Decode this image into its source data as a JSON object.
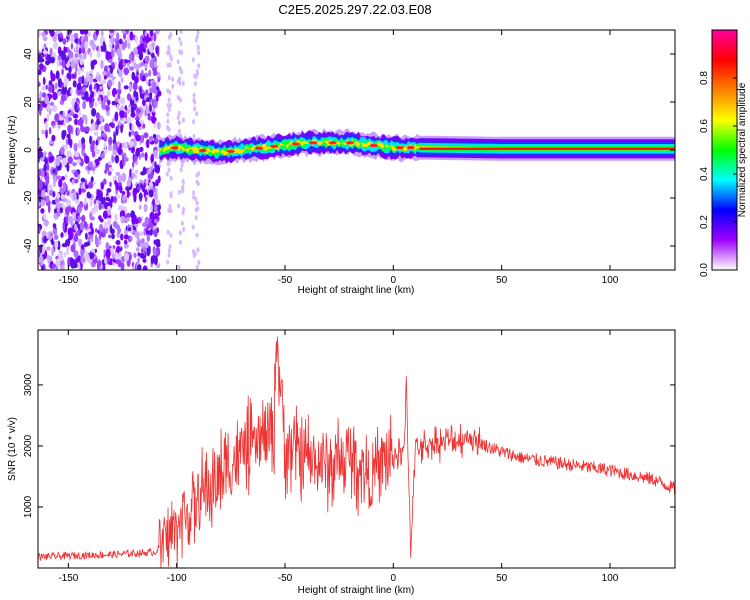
{
  "title": "C2E5.2025.297.22.03.E08",
  "chart_data": [
    {
      "type": "heatmap",
      "xlabel": "Height of straight line (km)",
      "ylabel": "Frequency (Hz)",
      "xlim": [
        -164,
        130
      ],
      "ylim": [
        -50,
        50
      ],
      "xticks": [
        -150,
        -100,
        -50,
        0,
        50,
        100
      ],
      "yticks": [
        -40,
        -20,
        0,
        20,
        40
      ],
      "colorbar": {
        "label": "Normalized spectral amplitude",
        "range": [
          0,
          1
        ],
        "ticks": [
          0.0,
          0.2,
          0.4,
          0.6,
          0.8
        ],
        "tick_labels": [
          "0.0",
          "0.2",
          "0.4",
          "0.6",
          "0.8"
        ],
        "colors": [
          "#ffffff",
          "#a000ff",
          "#0000ff",
          "#00ffff",
          "#00ff00",
          "#ffff00",
          "#ff8000",
          "#ff0000",
          "#ff00a0"
        ]
      },
      "noise_region_x": [
        -164,
        -108
      ],
      "signal_band": [
        {
          "x": -108,
          "freq": 0
        },
        {
          "x": -100,
          "freq": 1
        },
        {
          "x": -90,
          "freq": 0
        },
        {
          "x": -80,
          "freq": -1
        },
        {
          "x": -70,
          "freq": 0
        },
        {
          "x": -60,
          "freq": 1
        },
        {
          "x": -50,
          "freq": 2
        },
        {
          "x": -40,
          "freq": 3
        },
        {
          "x": -30,
          "freq": 3
        },
        {
          "x": -20,
          "freq": 3
        },
        {
          "x": -10,
          "freq": 2
        },
        {
          "x": 0,
          "freq": 1
        },
        {
          "x": 10,
          "freq": 1
        },
        {
          "x": 50,
          "freq": 0.5
        },
        {
          "x": 100,
          "freq": 0.5
        },
        {
          "x": 130,
          "freq": 0.5
        }
      ]
    },
    {
      "type": "line",
      "xlabel": "Height of straight line (km)",
      "ylabel": "SNR (10 * v/v)",
      "xlim": [
        -164,
        130
      ],
      "ylim": [
        0,
        3900
      ],
      "xticks": [
        -150,
        -100,
        -50,
        0,
        50,
        100
      ],
      "yticks": [
        1000,
        2000,
        3000
      ],
      "series": [
        {
          "color": "#ee3333",
          "x": [
            -164,
            -150,
            -130,
            -110,
            -105,
            -100,
            -95,
            -90,
            -85,
            -80,
            -75,
            -70,
            -65,
            -60,
            -55,
            -54,
            -50,
            -45,
            -40,
            -35,
            -30,
            -25,
            -20,
            -15,
            -10,
            -5,
            0,
            5,
            6,
            8,
            10,
            20,
            30,
            35,
            40,
            50,
            60,
            80,
            100,
            120,
            130
          ],
          "values": [
            180,
            200,
            220,
            260,
            450,
            700,
            900,
            1100,
            1300,
            1500,
            1700,
            1900,
            2000,
            2100,
            2200,
            3850,
            2000,
            1900,
            1800,
            1700,
            1650,
            1700,
            1800,
            1650,
            1500,
            1700,
            1850,
            1900,
            3000,
            300,
            1950,
            2050,
            2100,
            2150,
            2050,
            1900,
            1800,
            1700,
            1600,
            1450,
            1300
          ]
        }
      ]
    }
  ]
}
